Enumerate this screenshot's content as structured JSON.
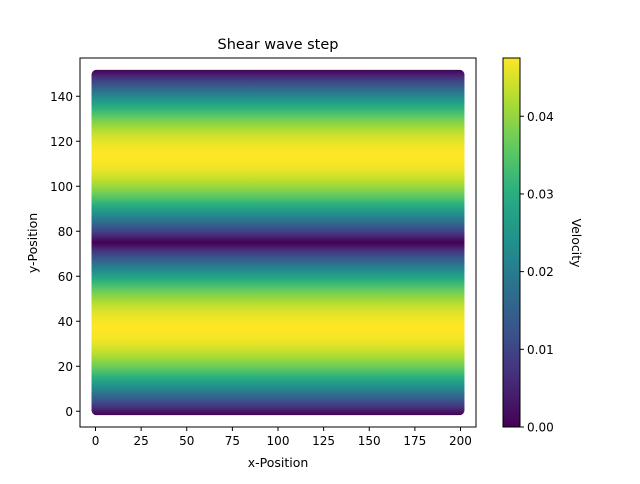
{
  "chart_data": {
    "type": "heatmap",
    "title": "Shear wave step",
    "xlabel": "x-Position",
    "ylabel": "y-Position",
    "xlim": [
      -8.5,
      208.5
    ],
    "ylim": [
      -7,
      157
    ],
    "x_ticks": [
      0,
      25,
      50,
      75,
      100,
      125,
      150,
      175,
      200
    ],
    "y_ticks": [
      0,
      20,
      40,
      60,
      80,
      100,
      120,
      140
    ],
    "field": {
      "x_range": [
        0,
        200
      ],
      "y_range": [
        0,
        150
      ],
      "description_formula": "velocity = vmax * |sin(2*pi*y/150)|",
      "vmax": 0.0475
    },
    "colormap": "viridis",
    "colorbar": {
      "label": "Velocity",
      "vmin": 0.0,
      "vmax": 0.0475,
      "ticks": [
        0.0,
        0.01,
        0.02,
        0.03,
        0.04
      ],
      "tick_labels": [
        "0.00",
        "0.01",
        "0.02",
        "0.03",
        "0.04"
      ]
    },
    "grid": false,
    "legend": "none"
  }
}
